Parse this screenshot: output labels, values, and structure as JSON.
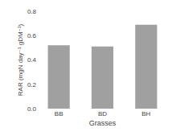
{
  "chart_data": {
    "type": "bar",
    "xlabel": "Grasses",
    "ylabel": "RAR (mgN day⁻¹ gDM⁻¹)",
    "categories": [
      "BB",
      "BD",
      "BH"
    ],
    "values": [
      0.52,
      0.51,
      0.69
    ],
    "color": "#a0a0a0",
    "ylim": [
      0.0,
      0.8
    ],
    "yticks": [
      {
        "value": 0.0,
        "label": "0.0"
      },
      0.2,
      0.4,
      0.6,
      0.8
    ],
    "grid": false
  }
}
